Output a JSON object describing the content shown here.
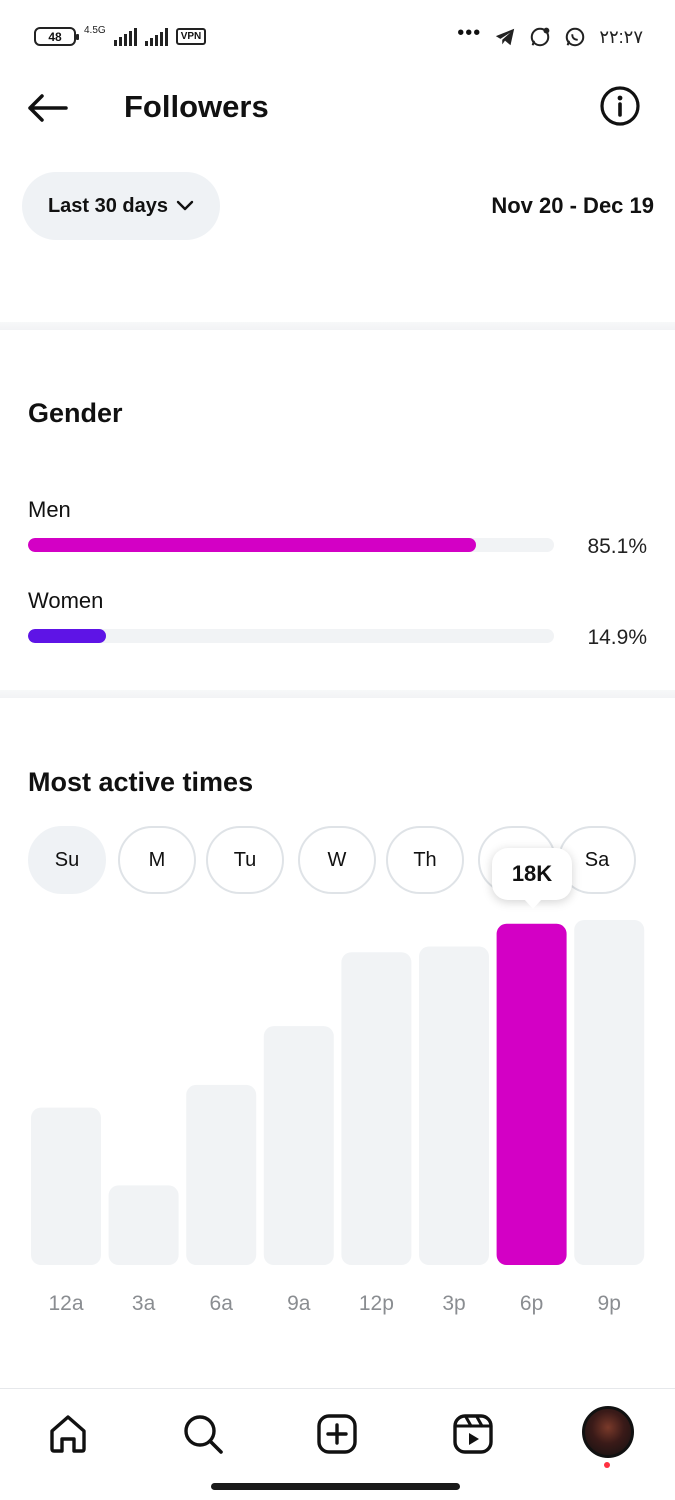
{
  "status_bar": {
    "battery": "48",
    "network": "4.5G",
    "vpn": "VPN",
    "time": "۲۲:۲۷",
    "more": "•••"
  },
  "header": {
    "title": "Followers",
    "back_icon": "arrow-left-icon",
    "info_icon": "info-circle-icon"
  },
  "filter": {
    "range_label": "Last 30 days",
    "date_range": "Nov 20 - Dec 19"
  },
  "gender": {
    "title": "Gender",
    "items": [
      {
        "label": "Men",
        "percent_text": "85.1%",
        "value": 0.851,
        "color": "#d300c5"
      },
      {
        "label": "Women",
        "percent_text": "14.9%",
        "value": 0.149,
        "color": "#5e14e6"
      }
    ]
  },
  "active_times": {
    "title": "Most active times",
    "days": [
      "Su",
      "M",
      "Tu",
      "W",
      "Th",
      "F",
      "Sa"
    ],
    "selected_day": "Su",
    "tooltip": "18K",
    "bar_color": "#f1f3f5",
    "highlight_color": "#d300c5"
  },
  "chart_data": {
    "type": "bar",
    "categories": [
      "12a",
      "3a",
      "6a",
      "9a",
      "12p",
      "3p",
      "6p",
      "9p"
    ],
    "values": [
      8.3,
      4.2,
      9.5,
      12.6,
      16.5,
      16.8,
      18,
      18.2
    ],
    "highlight_index": 6,
    "highlight_label": "18K",
    "title": "",
    "xlabel": "",
    "ylabel": "",
    "grid": false
  },
  "bottom_nav": {
    "items": [
      "home-icon",
      "search-icon",
      "create-icon",
      "reels-icon",
      "profile-avatar"
    ]
  }
}
